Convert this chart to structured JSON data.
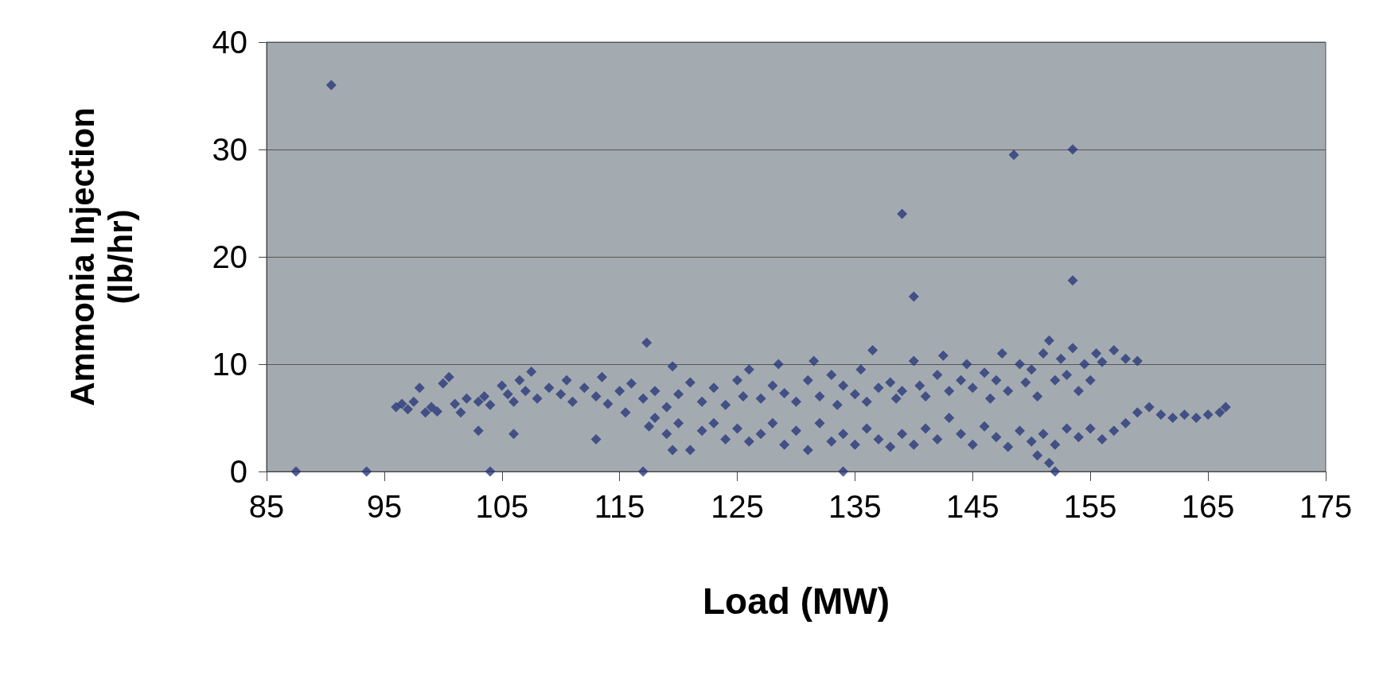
{
  "chart_data": {
    "type": "scatter",
    "xlabel": "Load (MW)",
    "ylabel": "Ammonia Injection\n(lb/hr)",
    "xlim": [
      85,
      175
    ],
    "xticks": [
      85,
      95,
      105,
      115,
      125,
      135,
      145,
      155,
      165,
      175
    ],
    "ylim": [
      0,
      40
    ],
    "yticks": [
      0,
      10,
      20,
      30,
      40
    ],
    "grid": "y",
    "marker": "diamond",
    "series": [
      {
        "color": "#2b3a7a",
        "x": [
          90.5,
          87.5,
          93.5,
          104,
          117,
          134,
          117.3,
          139,
          140,
          136.5,
          148.5,
          153.5,
          153.5,
          152,
          151.5,
          113,
          106,
          103,
          96,
          96.5,
          97,
          97.5,
          98,
          98.5,
          99,
          99.5,
          100,
          100.5,
          101,
          101.5,
          102,
          103,
          103.5,
          104,
          105,
          105.5,
          106,
          106.5,
          107,
          107.5,
          108,
          109,
          110,
          110.5,
          111,
          112,
          113,
          113.5,
          114,
          115,
          115.5,
          116,
          117,
          117.5,
          118,
          119,
          119.5,
          120,
          121,
          122,
          123,
          124,
          125,
          125.5,
          126,
          127,
          128,
          128.5,
          129,
          130,
          131,
          131.5,
          132,
          133,
          133.5,
          134,
          135,
          135.5,
          136,
          137,
          138,
          138.5,
          139,
          140,
          140.5,
          141,
          142,
          142.5,
          143,
          144,
          144.5,
          145,
          146,
          146.5,
          147,
          147.5,
          148,
          149,
          149.5,
          150,
          150.5,
          151,
          151.5,
          152,
          152.5,
          153,
          153.5,
          154,
          154.5,
          155,
          155.5,
          156,
          157,
          158,
          159,
          118,
          119,
          119.5,
          120,
          121,
          122,
          123,
          124,
          125,
          126,
          127,
          128,
          129,
          130,
          131,
          132,
          133,
          134,
          135,
          136,
          137,
          138,
          139,
          140,
          141,
          142,
          143,
          144,
          145,
          146,
          147,
          148,
          149,
          150,
          150.5,
          151,
          152,
          153,
          154,
          155,
          156,
          157,
          158,
          159,
          160,
          161,
          162,
          163,
          164,
          165,
          166,
          166.5
        ],
        "values": [
          36,
          0,
          0,
          0,
          0,
          0,
          12,
          24,
          16.3,
          11.3,
          29.5,
          30,
          17.8,
          0,
          0.8,
          3,
          3.5,
          3.8,
          6,
          6.3,
          5.8,
          6.5,
          7.8,
          5.5,
          6,
          5.6,
          8.2,
          8.8,
          6.3,
          5.5,
          6.8,
          6.5,
          7,
          6.2,
          8,
          7.2,
          6.5,
          8.5,
          7.5,
          9.3,
          6.8,
          7.8,
          7.2,
          8.5,
          6.5,
          7.8,
          7,
          8.8,
          6.3,
          7.5,
          5.5,
          8.2,
          6.8,
          4.2,
          7.5,
          6,
          9.8,
          7.2,
          8.3,
          6.5,
          7.8,
          6.2,
          8.5,
          7,
          9.5,
          6.8,
          8,
          10,
          7.3,
          6.5,
          8.5,
          10.3,
          7,
          9,
          6.2,
          8,
          7.2,
          9.5,
          6.5,
          7.8,
          8.3,
          6.8,
          7.5,
          10.3,
          8,
          7,
          9,
          10.8,
          7.5,
          8.5,
          10,
          7.8,
          9.2,
          6.8,
          8.5,
          11,
          7.5,
          10,
          8.3,
          9.5,
          7,
          11,
          12.2,
          8.5,
          10.5,
          9,
          11.5,
          7.5,
          10,
          8.5,
          11,
          10.2,
          11.3,
          10.5,
          10.3,
          5,
          3.5,
          2,
          4.5,
          2,
          3.8,
          4.5,
          3,
          4,
          2.8,
          3.5,
          4.5,
          2.5,
          3.8,
          2,
          4.5,
          2.8,
          3.5,
          2.5,
          4,
          3,
          2.3,
          3.5,
          2.5,
          4,
          3,
          5,
          3.5,
          2.5,
          4.2,
          3.2,
          2.3,
          3.8,
          2.8,
          1.5,
          3.5,
          2.5,
          4,
          3.2,
          4,
          3,
          3.8,
          4.5,
          5.5,
          6,
          5.3,
          5,
          5.3,
          5,
          5.3,
          5.5,
          6
        ]
      }
    ]
  }
}
